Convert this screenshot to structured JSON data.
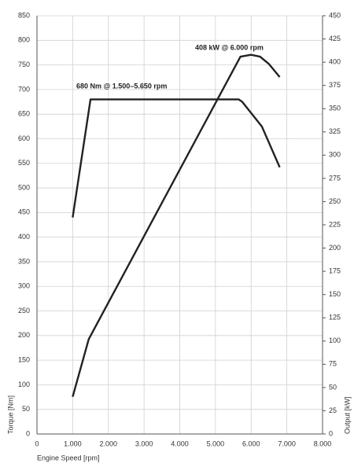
{
  "chart_data": {
    "type": "line",
    "x_label": "Engine Speed [rpm]",
    "y_label": "Torque [Nm]",
    "y2_label": "Output [kW]",
    "annotations": [
      {
        "text": "680 Nm @ 1.500–5.650 rpm"
      },
      {
        "text": "408 kW @ 6.000 rpm"
      }
    ],
    "series": [
      {
        "name": "Torque",
        "color": "#222222",
        "x": [
          1000,
          1500,
          5650,
          5750,
          6300,
          6800
        ],
        "values": [
          440,
          680,
          680,
          675,
          625,
          542
        ]
      },
      {
        "name": "Output",
        "color": "#222222",
        "axis": "y2",
        "x": [
          1000,
          1450,
          5700,
          6000,
          6250,
          6500,
          6800
        ],
        "values": [
          40,
          102,
          406,
          408,
          406,
          398,
          384
        ]
      }
    ],
    "xlim": [
      0,
      8000
    ],
    "xticks": [
      0,
      {
        "value": 1000,
        "label": "1.000"
      },
      {
        "value": 2000,
        "label": "2.000"
      },
      {
        "value": 3000,
        "label": "3.000"
      },
      {
        "value": 4000,
        "label": "4.000"
      },
      {
        "value": 5000,
        "label": "5.000"
      },
      {
        "value": 6000,
        "label": "6.000"
      },
      {
        "value": 7000,
        "label": "7.000"
      },
      {
        "value": 8000,
        "label": "8.000"
      }
    ],
    "ylim": [
      0,
      850
    ],
    "yticks": [
      0,
      50,
      100,
      150,
      200,
      250,
      300,
      350,
      400,
      450,
      500,
      550,
      600,
      650,
      700,
      750,
      800,
      850
    ],
    "y2lim": [
      0,
      450
    ],
    "y2ticks": [
      0,
      25,
      50,
      75,
      100,
      125,
      150,
      175,
      200,
      225,
      250,
      275,
      300,
      325,
      350,
      375,
      400,
      425,
      450
    ],
    "grid": true
  }
}
